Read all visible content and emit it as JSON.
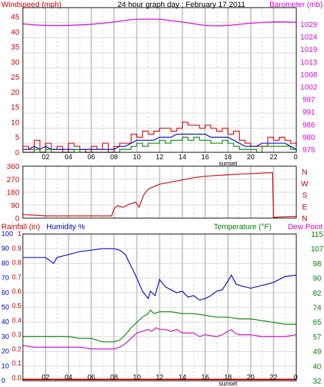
{
  "colors": {
    "wind": "#d00000",
    "gust": "#e00000",
    "avg": "#0000cc",
    "green": "#008800",
    "barometer": "#dd00dd",
    "humidity": "#0000cc",
    "temperature": "#008000",
    "dewpoint": "#cc00cc",
    "rain": "#d00000",
    "grid_major": "#c8c8c8",
    "grid_minor": "#d8d8d8",
    "frame": "#000000"
  },
  "chart_data": [
    {
      "type": "line",
      "panel": "wind-barometer",
      "title": "24 hour graph day : February 17 2011",
      "left_axis_label": "Windspeed (mph)",
      "right_axis_label": "Barometer (mb)",
      "left_ticks": [
        "0",
        "5",
        "10",
        "15",
        "20",
        "25",
        "30",
        "35",
        "40",
        "45"
      ],
      "right_ticks": [
        "975",
        "980",
        "986",
        "991",
        "997",
        "1002",
        "1008",
        "1013",
        "1019",
        "1024",
        "1029"
      ],
      "x_ticks": [
        "02",
        "04",
        "06",
        "08",
        "10",
        "12",
        "14",
        "16",
        "18",
        "20",
        "22",
        "0"
      ],
      "x_sublabel": "sunset",
      "ylim_left": [
        0,
        48
      ],
      "ylim_right": [
        975,
        1029.5
      ],
      "xlim": [
        0,
        24
      ],
      "series": [
        {
          "key": "barometer",
          "axis": "right",
          "x": [
            0,
            1,
            2,
            3,
            4,
            5,
            6,
            7,
            8,
            9,
            10,
            11,
            12,
            13,
            14,
            15,
            16,
            17,
            18,
            19,
            20,
            21,
            22,
            23,
            24
          ],
          "values": [
            1023.4,
            1023.0,
            1022.8,
            1022.7,
            1022.8,
            1023.0,
            1023.2,
            1023.6,
            1024.1,
            1024.7,
            1025.1,
            1025.2,
            1025.1,
            1024.6,
            1024.1,
            1023.4,
            1022.8,
            1022.6,
            1022.8,
            1023.2,
            1023.6,
            1023.9,
            1024.1,
            1024.1,
            1024.0
          ]
        },
        {
          "key": "gust",
          "axis": "left",
          "x": [
            0,
            0.5,
            1,
            1.5,
            2,
            2.5,
            3,
            3.5,
            4,
            4.5,
            5,
            5.5,
            6,
            6.5,
            7,
            7.5,
            8,
            8.5,
            9,
            9.5,
            10,
            10.5,
            11,
            11.5,
            12,
            12.5,
            13,
            13.5,
            14,
            14.5,
            15,
            15.5,
            16,
            16.5,
            17,
            17.5,
            18,
            18.5,
            19,
            19.5,
            20,
            20.5,
            21,
            21.5,
            22,
            22.5,
            23,
            23.5,
            24
          ],
          "values": [
            2,
            1,
            4,
            0,
            3,
            1,
            2,
            0,
            3,
            2,
            1,
            0,
            2,
            1,
            3,
            0,
            2,
            3,
            3,
            6,
            5,
            7,
            6,
            7,
            8,
            8,
            7,
            8,
            10,
            9,
            9,
            8,
            9,
            8,
            7,
            8,
            6,
            7,
            4,
            3,
            2,
            2,
            2,
            5,
            4,
            5,
            4,
            3,
            2
          ]
        },
        {
          "key": "average",
          "axis": "left",
          "x": [
            0,
            0.5,
            1,
            1.5,
            2,
            2.5,
            3,
            3.5,
            4,
            4.5,
            5,
            5.5,
            6,
            6.5,
            7,
            7.5,
            8,
            8.5,
            9,
            9.5,
            10,
            10.5,
            11,
            11.5,
            12,
            12.5,
            13,
            13.5,
            14,
            14.5,
            15,
            15.5,
            16,
            16.5,
            17,
            17.5,
            18,
            18.5,
            19,
            19.5,
            20,
            20.5,
            21,
            21.5,
            22,
            22.5,
            23,
            23.5,
            24
          ],
          "values": [
            1,
            1,
            2,
            1,
            2,
            1,
            1,
            1,
            1,
            1,
            1,
            1,
            1,
            1,
            1,
            1,
            1,
            2,
            2,
            3,
            4,
            4,
            4,
            4,
            5,
            5,
            5,
            6,
            6,
            6,
            6,
            6,
            6,
            5,
            5,
            5,
            5,
            4,
            3,
            2,
            2,
            2,
            3,
            3,
            3,
            3,
            3,
            2,
            1
          ]
        },
        {
          "key": "speed",
          "axis": "left",
          "x": [
            0,
            0.5,
            1,
            1.5,
            2,
            2.5,
            3,
            3.5,
            4,
            4.5,
            5,
            5.5,
            6,
            6.5,
            7,
            7.5,
            8,
            8.5,
            9,
            9.5,
            10,
            10.5,
            11,
            11.5,
            12,
            12.5,
            13,
            13.5,
            14,
            14.5,
            15,
            15.5,
            16,
            16.5,
            17,
            17.5,
            18,
            18.5,
            19,
            19.5,
            20,
            20.5,
            21,
            21.5,
            22,
            22.5,
            23,
            23.5,
            24
          ],
          "values": [
            0,
            0,
            1,
            0,
            1,
            0,
            0,
            0,
            0,
            1,
            0,
            0,
            0,
            0,
            0,
            0,
            0,
            1,
            1,
            2,
            3,
            2,
            3,
            3,
            4,
            3,
            4,
            4,
            5,
            4,
            5,
            4,
            4,
            3,
            3,
            4,
            3,
            2,
            1,
            1,
            1,
            0,
            2,
            2,
            2,
            2,
            2,
            1,
            0
          ]
        }
      ]
    },
    {
      "type": "line",
      "panel": "wind-direction",
      "left_ticks": [
        "360",
        "270",
        "180",
        "90",
        "0"
      ],
      "right_letters": [
        "N",
        "W",
        "S",
        "E",
        "N"
      ],
      "ylim": [
        0,
        360
      ],
      "xlim": [
        0,
        24
      ],
      "series": [
        {
          "key": "direction",
          "x": [
            0,
            2,
            4,
            6,
            7.8,
            8.0,
            8.3,
            8.8,
            9.3,
            9.9,
            10.2,
            10.6,
            11.0,
            11.4,
            12,
            13,
            14,
            15,
            16,
            17,
            18,
            19,
            20,
            21,
            21.9,
            22.0,
            23,
            24
          ],
          "values": [
            25,
            15,
            15,
            15,
            15,
            65,
            85,
            75,
            95,
            110,
            75,
            160,
            200,
            215,
            235,
            250,
            265,
            280,
            290,
            295,
            300,
            305,
            308,
            312,
            315,
            5,
            10,
            12
          ]
        }
      ]
    },
    {
      "type": "line",
      "panel": "temperature-humidity",
      "left_axis_label": "Rainfall (in)",
      "humidity_label": "Humidity %",
      "temperature_label": "Temperature (°F)",
      "dewpoint_label": "Dew Point",
      "humidity_ticks": [
        "0",
        "10",
        "20",
        "30",
        "40",
        "50",
        "60",
        "70",
        "80",
        "90",
        "100"
      ],
      "rain_ticks": [
        "0.0",
        "0.1",
        "0.2",
        "0.3",
        "0.4",
        "0.5",
        "0.6",
        "0.7",
        "0.8",
        "0.9",
        "1"
      ],
      "temp_ticks": [
        "32",
        "40",
        "49",
        "57",
        "65",
        "74",
        "82",
        "90",
        "98",
        "107",
        "115"
      ],
      "x_ticks": [
        "02",
        "04",
        "06",
        "08",
        "10",
        "12",
        "14",
        "16",
        "18",
        "20",
        "22",
        "0"
      ],
      "x_sublabel": "sunset",
      "ylim_humidity": [
        0,
        100
      ],
      "ylim_temp": [
        32,
        115
      ],
      "xlim": [
        0,
        24
      ],
      "series": [
        {
          "key": "humidity",
          "x": [
            0,
            1,
            2,
            2.7,
            3,
            4,
            5,
            6,
            7,
            8,
            8.5,
            9,
            9.5,
            10,
            10.5,
            11,
            11.2,
            11.6,
            12,
            12.5,
            13,
            13.5,
            14,
            14.5,
            15,
            15.5,
            16,
            16.5,
            17,
            17.5,
            18,
            18.3,
            18.7,
            19,
            19.5,
            20,
            21,
            22,
            23,
            24
          ],
          "values": [
            84,
            84,
            84,
            80,
            84,
            86,
            88,
            89,
            90,
            90,
            89,
            86,
            78,
            70,
            61,
            56,
            61,
            58,
            69,
            64,
            62,
            60,
            61,
            57,
            58,
            55,
            56,
            58,
            61,
            62,
            68,
            72,
            66,
            65,
            64,
            63,
            65,
            67,
            71,
            72
          ]
        },
        {
          "key": "temperature",
          "x": [
            0,
            1,
            2,
            3,
            4,
            5,
            6,
            7,
            8,
            8.5,
            9,
            9.5,
            10,
            10.5,
            11,
            11.2,
            11.5,
            12,
            13,
            14,
            15,
            16,
            17,
            18,
            19,
            20,
            21,
            22,
            23,
            24
          ],
          "values": [
            57,
            57,
            57,
            57,
            57,
            56,
            56,
            54,
            54,
            55,
            58,
            62,
            65,
            68,
            70,
            72,
            70,
            71,
            71,
            70,
            70,
            69,
            68,
            68,
            67,
            67,
            66,
            65,
            64,
            64
          ]
        },
        {
          "key": "dewpoint",
          "x": [
            0,
            1,
            2,
            3,
            4,
            5,
            6,
            7,
            8,
            8.5,
            9,
            9.5,
            10,
            10.5,
            11,
            11.3,
            11.7,
            12,
            12.5,
            13,
            13.5,
            14,
            15,
            15.5,
            16,
            17,
            17.5,
            18,
            18.3,
            18.6,
            19,
            20,
            21,
            22,
            23,
            24
          ],
          "values": [
            52,
            51,
            51,
            51,
            51,
            51,
            50,
            50,
            50,
            51,
            53,
            56,
            59,
            60,
            61,
            60,
            62,
            61,
            61,
            60,
            61,
            59,
            59,
            57,
            58,
            57,
            58,
            60,
            61,
            59,
            58,
            58,
            57,
            57,
            57,
            58
          ]
        },
        {
          "key": "rainfall",
          "x": [
            0,
            24
          ],
          "values": [
            0.0,
            0.0
          ]
        }
      ]
    }
  ]
}
